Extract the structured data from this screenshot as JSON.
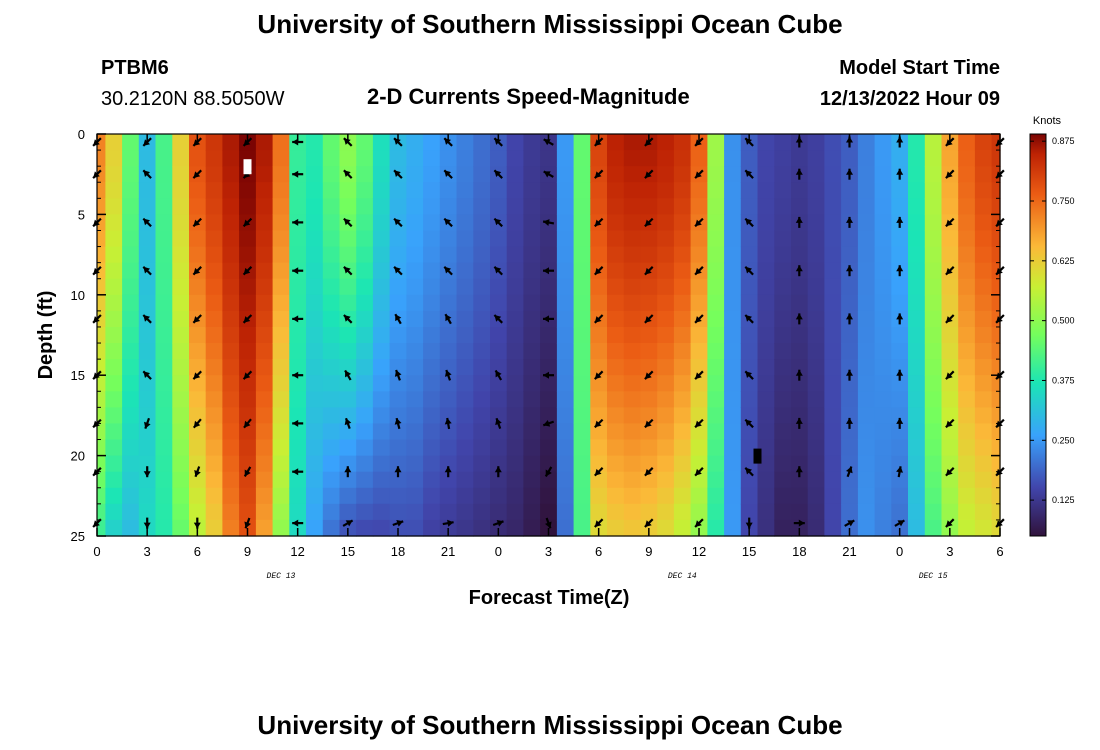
{
  "page": {
    "title": "University of Southern Mississippi Ocean Cube",
    "footer_title": "University of Southern Mississippi Ocean Cube",
    "station": "PTBM6",
    "coords": "30.2120N  88.5050W",
    "plot_title": "2-D Currents Speed-Magnitude",
    "model_start_label": "Model Start Time",
    "model_start_value": "12/13/2022 Hour 09"
  },
  "chart_data": {
    "type": "heatmap",
    "title": "2-D Currents Speed-Magnitude",
    "xlabel": "Forecast Time(Z)",
    "ylabel": "Depth (ft)",
    "x_ticks": [
      "0",
      "3",
      "6",
      "9",
      "12",
      "15",
      "18",
      "21",
      "0",
      "3",
      "6",
      "9",
      "12",
      "15",
      "18",
      "21",
      "0",
      "3",
      "6"
    ],
    "x_range": [
      0,
      54
    ],
    "y_ticks": [
      "0",
      "5",
      "10",
      "15",
      "20",
      "25"
    ],
    "y_range": [
      0,
      25
    ],
    "date_labels": [
      {
        "text": "DEC 13",
        "hour": 11
      },
      {
        "text": "DEC 14",
        "hour": 35
      },
      {
        "text": "DEC 15",
        "hour": 50
      }
    ],
    "colorbar": {
      "unit": "Knots",
      "min": 0.05,
      "max": 0.89,
      "ticks": [
        "0.875",
        "0.750",
        "0.625",
        "0.500",
        "0.375",
        "0.250",
        "0.125"
      ],
      "tick_values": [
        0.875,
        0.75,
        0.625,
        0.5,
        0.375,
        0.25,
        0.125
      ]
    },
    "speed_profiles": [
      {
        "hour": 0,
        "surface": 0.72,
        "bottom": 0.4
      },
      {
        "hour": 1,
        "surface": 0.62,
        "bottom": 0.33
      },
      {
        "hour": 2,
        "surface": 0.45,
        "bottom": 0.3
      },
      {
        "hour": 3,
        "surface": 0.3,
        "bottom": 0.35
      },
      {
        "hour": 4,
        "surface": 0.42,
        "bottom": 0.38
      },
      {
        "hour": 5,
        "surface": 0.62,
        "bottom": 0.45
      },
      {
        "hour": 6,
        "surface": 0.78,
        "bottom": 0.55
      },
      {
        "hour": 7,
        "surface": 0.82,
        "bottom": 0.62
      },
      {
        "hour": 8,
        "surface": 0.86,
        "bottom": 0.72
      },
      {
        "hour": 9,
        "surface": 0.89,
        "bottom": 0.78
      },
      {
        "hour": 10,
        "surface": 0.86,
        "bottom": 0.68
      },
      {
        "hour": 11,
        "surface": 0.74,
        "bottom": 0.5
      },
      {
        "hour": 12,
        "surface": 0.4,
        "bottom": 0.35
      },
      {
        "hour": 13,
        "surface": 0.38,
        "bottom": 0.26
      },
      {
        "hour": 14,
        "surface": 0.45,
        "bottom": 0.2
      },
      {
        "hour": 15,
        "surface": 0.5,
        "bottom": 0.16
      },
      {
        "hour": 16,
        "surface": 0.45,
        "bottom": 0.15
      },
      {
        "hour": 17,
        "surface": 0.36,
        "bottom": 0.15
      },
      {
        "hour": 18,
        "surface": 0.3,
        "bottom": 0.16
      },
      {
        "hour": 19,
        "surface": 0.28,
        "bottom": 0.16
      },
      {
        "hour": 20,
        "surface": 0.26,
        "bottom": 0.14
      },
      {
        "hour": 21,
        "surface": 0.24,
        "bottom": 0.13
      },
      {
        "hour": 22,
        "surface": 0.22,
        "bottom": 0.12
      },
      {
        "hour": 23,
        "surface": 0.2,
        "bottom": 0.11
      },
      {
        "hour": 24,
        "surface": 0.18,
        "bottom": 0.1
      },
      {
        "hour": 25,
        "surface": 0.15,
        "bottom": 0.09
      },
      {
        "hour": 26,
        "surface": 0.13,
        "bottom": 0.07
      },
      {
        "hour": 27,
        "surface": 0.12,
        "bottom": 0.05
      },
      {
        "hour": 28,
        "surface": 0.25,
        "bottom": 0.2
      },
      {
        "hour": 29,
        "surface": 0.45,
        "bottom": 0.42
      },
      {
        "hour": 30,
        "surface": 0.8,
        "bottom": 0.6
      },
      {
        "hour": 31,
        "surface": 0.85,
        "bottom": 0.62
      },
      {
        "hour": 32,
        "surface": 0.86,
        "bottom": 0.63
      },
      {
        "hour": 33,
        "surface": 0.86,
        "bottom": 0.62
      },
      {
        "hour": 34,
        "surface": 0.85,
        "bottom": 0.6
      },
      {
        "hour": 35,
        "surface": 0.83,
        "bottom": 0.56
      },
      {
        "hour": 36,
        "surface": 0.76,
        "bottom": 0.5
      },
      {
        "hour": 37,
        "surface": 0.52,
        "bottom": 0.38
      },
      {
        "hour": 38,
        "surface": 0.24,
        "bottom": 0.25
      },
      {
        "hour": 39,
        "surface": 0.18,
        "bottom": 0.15
      },
      {
        "hour": 40,
        "surface": 0.15,
        "bottom": 0.11
      },
      {
        "hour": 41,
        "surface": 0.14,
        "bottom": 0.08
      },
      {
        "hour": 42,
        "surface": 0.13,
        "bottom": 0.08
      },
      {
        "hour": 43,
        "surface": 0.14,
        "bottom": 0.1
      },
      {
        "hour": 44,
        "surface": 0.16,
        "bottom": 0.15
      },
      {
        "hour": 45,
        "surface": 0.18,
        "bottom": 0.2
      },
      {
        "hour": 46,
        "surface": 0.22,
        "bottom": 0.24
      },
      {
        "hour": 47,
        "surface": 0.25,
        "bottom": 0.22
      },
      {
        "hour": 48,
        "surface": 0.28,
        "bottom": 0.2
      },
      {
        "hour": 49,
        "surface": 0.38,
        "bottom": 0.3
      },
      {
        "hour": 50,
        "surface": 0.55,
        "bottom": 0.42
      },
      {
        "hour": 51,
        "surface": 0.68,
        "bottom": 0.5
      },
      {
        "hour": 52,
        "surface": 0.76,
        "bottom": 0.56
      },
      {
        "hour": 53,
        "surface": 0.8,
        "bottom": 0.58
      },
      {
        "hour": 54,
        "surface": 0.82,
        "bottom": 0.6
      }
    ],
    "vectors": {
      "hours": [
        0,
        3,
        6,
        9,
        12,
        15,
        18,
        21,
        24,
        27,
        30,
        33,
        36,
        39,
        42,
        45,
        48,
        51,
        54
      ],
      "depths_ft": [
        0.5,
        2.5,
        5.5,
        8.5,
        11.5,
        15,
        18,
        21,
        24.2
      ],
      "direction_deg": [
        [
          225,
          225,
          225,
          225,
          225,
          225,
          225,
          225,
          225
        ],
        [
          225,
          315,
          315,
          315,
          315,
          315,
          200,
          180,
          180
        ],
        [
          225,
          225,
          225,
          225,
          225,
          225,
          220,
          200,
          180
        ],
        [
          225,
          225,
          225,
          225,
          225,
          225,
          220,
          210,
          200
        ],
        [
          270,
          270,
          270,
          270,
          270,
          270,
          270,
          270,
          270
        ],
        [
          315,
          315,
          315,
          315,
          315,
          330,
          340,
          0,
          60
        ],
        [
          315,
          315,
          315,
          315,
          330,
          340,
          345,
          0,
          70
        ],
        [
          315,
          315,
          315,
          315,
          330,
          340,
          350,
          0,
          80
        ],
        [
          315,
          315,
          315,
          315,
          315,
          330,
          340,
          0,
          70
        ],
        [
          300,
          300,
          280,
          270,
          270,
          270,
          250,
          210,
          160
        ],
        [
          225,
          225,
          225,
          225,
          225,
          225,
          225,
          225,
          225
        ],
        [
          225,
          225,
          225,
          225,
          225,
          225,
          225,
          225,
          225
        ],
        [
          225,
          225,
          225,
          225,
          225,
          225,
          225,
          225,
          225
        ],
        [
          315,
          315,
          315,
          315,
          315,
          315,
          315,
          315,
          180
        ],
        [
          0,
          0,
          0,
          0,
          0,
          0,
          0,
          0,
          90
        ],
        [
          0,
          0,
          0,
          0,
          0,
          0,
          0,
          20,
          60
        ],
        [
          0,
          0,
          0,
          0,
          0,
          0,
          0,
          10,
          60
        ],
        [
          225,
          225,
          225,
          225,
          225,
          225,
          225,
          225,
          225
        ],
        [
          225,
          225,
          225,
          225,
          225,
          225,
          225,
          225,
          225
        ]
      ]
    },
    "markers": [
      {
        "hour": 9,
        "depth_ft": 2,
        "color": "#ffffff"
      },
      {
        "hour": 39.5,
        "depth_ft": 20,
        "color": "#000000"
      }
    ]
  }
}
